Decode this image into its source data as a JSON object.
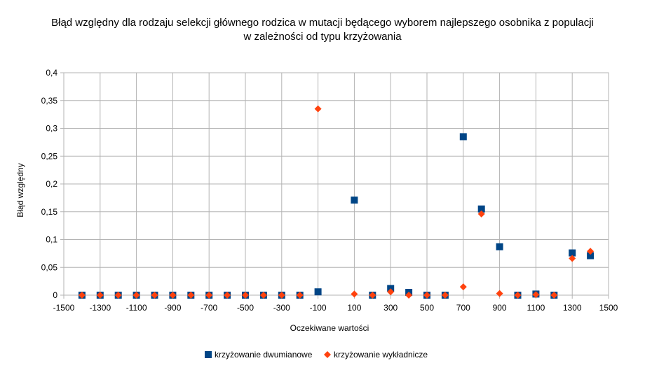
{
  "chart_data": {
    "type": "scatter",
    "title": "Błąd względny dla  rodzaju selekcji głównego rodzica w mutacji będącego wyborem najlepszego osobnika z populacji",
    "subtitle": "w zależności od typu krzyżowania",
    "xlabel": "Oczekiwane wartości",
    "ylabel": "Błąd względny",
    "xlim": [
      -1500,
      1500
    ],
    "ylim": [
      0,
      0.4
    ],
    "x_ticks": [
      "-1500",
      "-1300",
      "-1100",
      "-900",
      "-700",
      "-500",
      "-300",
      "-100",
      "100",
      "300",
      "500",
      "700",
      "900",
      "1100",
      "1300",
      "1500"
    ],
    "y_ticks": [
      "0",
      "0,05",
      "0,1",
      "0,15",
      "0,2",
      "0,25",
      "0,3",
      "0,35",
      "0,4"
    ],
    "grid": true,
    "legend_position": "bottom",
    "series": [
      {
        "name": "krzyżowanie dwumianowe",
        "marker": "square",
        "color": "#004586",
        "points": [
          [
            -1400,
            0
          ],
          [
            -1300,
            0
          ],
          [
            -1200,
            0
          ],
          [
            -1100,
            0
          ],
          [
            -1000,
            0
          ],
          [
            -900,
            0
          ],
          [
            -800,
            0
          ],
          [
            -700,
            0
          ],
          [
            -600,
            0
          ],
          [
            -500,
            0
          ],
          [
            -400,
            0
          ],
          [
            -300,
            0
          ],
          [
            -200,
            0
          ],
          [
            -100,
            0.006
          ],
          [
            100,
            0.171
          ],
          [
            200,
            0
          ],
          [
            300,
            0.012
          ],
          [
            400,
            0.005
          ],
          [
            500,
            0
          ],
          [
            600,
            0
          ],
          [
            700,
            0.285
          ],
          [
            800,
            0.155
          ],
          [
            900,
            0.087
          ],
          [
            1000,
            0
          ],
          [
            1100,
            0.002
          ],
          [
            1200,
            0
          ],
          [
            1300,
            0.076
          ],
          [
            1400,
            0.071
          ]
        ]
      },
      {
        "name": "krzyżowanie wykładnicze",
        "marker": "diamond",
        "color": "#ff420e",
        "points": [
          [
            -1400,
            0
          ],
          [
            -1300,
            0
          ],
          [
            -1200,
            0
          ],
          [
            -1100,
            0
          ],
          [
            -1000,
            0
          ],
          [
            -900,
            0
          ],
          [
            -800,
            0
          ],
          [
            -700,
            0
          ],
          [
            -600,
            0
          ],
          [
            -500,
            0
          ],
          [
            -400,
            0
          ],
          [
            -300,
            0
          ],
          [
            -200,
            0
          ],
          [
            -100,
            0.335
          ],
          [
            100,
            0.002
          ],
          [
            200,
            0
          ],
          [
            300,
            0.006
          ],
          [
            400,
            0
          ],
          [
            500,
            0
          ],
          [
            600,
            0
          ],
          [
            700,
            0.015
          ],
          [
            800,
            0.146
          ],
          [
            900,
            0.003
          ],
          [
            1000,
            0
          ],
          [
            1100,
            0.001
          ],
          [
            1200,
            0
          ],
          [
            1300,
            0.066
          ],
          [
            1400,
            0.079
          ]
        ]
      }
    ]
  }
}
